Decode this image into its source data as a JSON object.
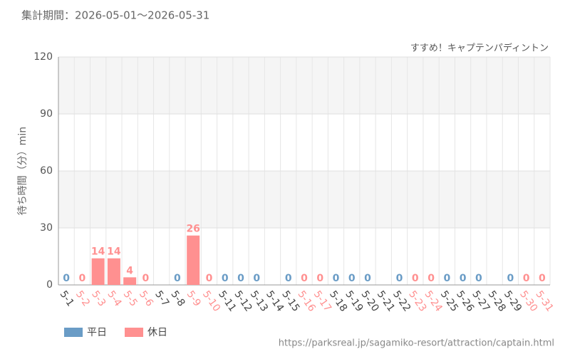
{
  "chart_data": {
    "type": "bar",
    "period": "集計期間：2026-05-01～2026-05-31",
    "title": "すすめ！キャプテンパディントン",
    "y_label": "待ち時間（分）min",
    "categories": [
      "5-1",
      "5-2",
      "5-3",
      "5-4",
      "5-5",
      "5-6",
      "5-7",
      "5-8",
      "5-9",
      "5-10",
      "5-11",
      "5-12",
      "5-13",
      "5-14",
      "5-15",
      "5-16",
      "5-17",
      "5-18",
      "5-19",
      "5-20",
      "5-21",
      "5-22",
      "5-23",
      "5-24",
      "5-25",
      "5-26",
      "5-27",
      "5-28",
      "5-29",
      "5-30",
      "5-31"
    ],
    "series": [
      {
        "name": "平日",
        "color": "#6a9cc6",
        "values": [
          0,
          null,
          null,
          null,
          null,
          null,
          null,
          0,
          null,
          null,
          0,
          0,
          0,
          null,
          0,
          null,
          null,
          0,
          0,
          0,
          null,
          0,
          null,
          null,
          0,
          0,
          0,
          null,
          0,
          null,
          null
        ]
      },
      {
        "name": "休日",
        "color": "#ff9090",
        "values": [
          null,
          0,
          14,
          14,
          4,
          0,
          null,
          null,
          26,
          0,
          null,
          null,
          null,
          null,
          null,
          0,
          0,
          null,
          null,
          null,
          null,
          null,
          0,
          0,
          null,
          null,
          null,
          null,
          null,
          0,
          0
        ]
      }
    ],
    "ylim": [
      0,
      120
    ],
    "yticks": [
      0,
      30,
      60,
      90,
      120
    ],
    "grid": true,
    "source_url": "https://parksreal.jp/sagamiko-resort/attraction/captain.html"
  }
}
